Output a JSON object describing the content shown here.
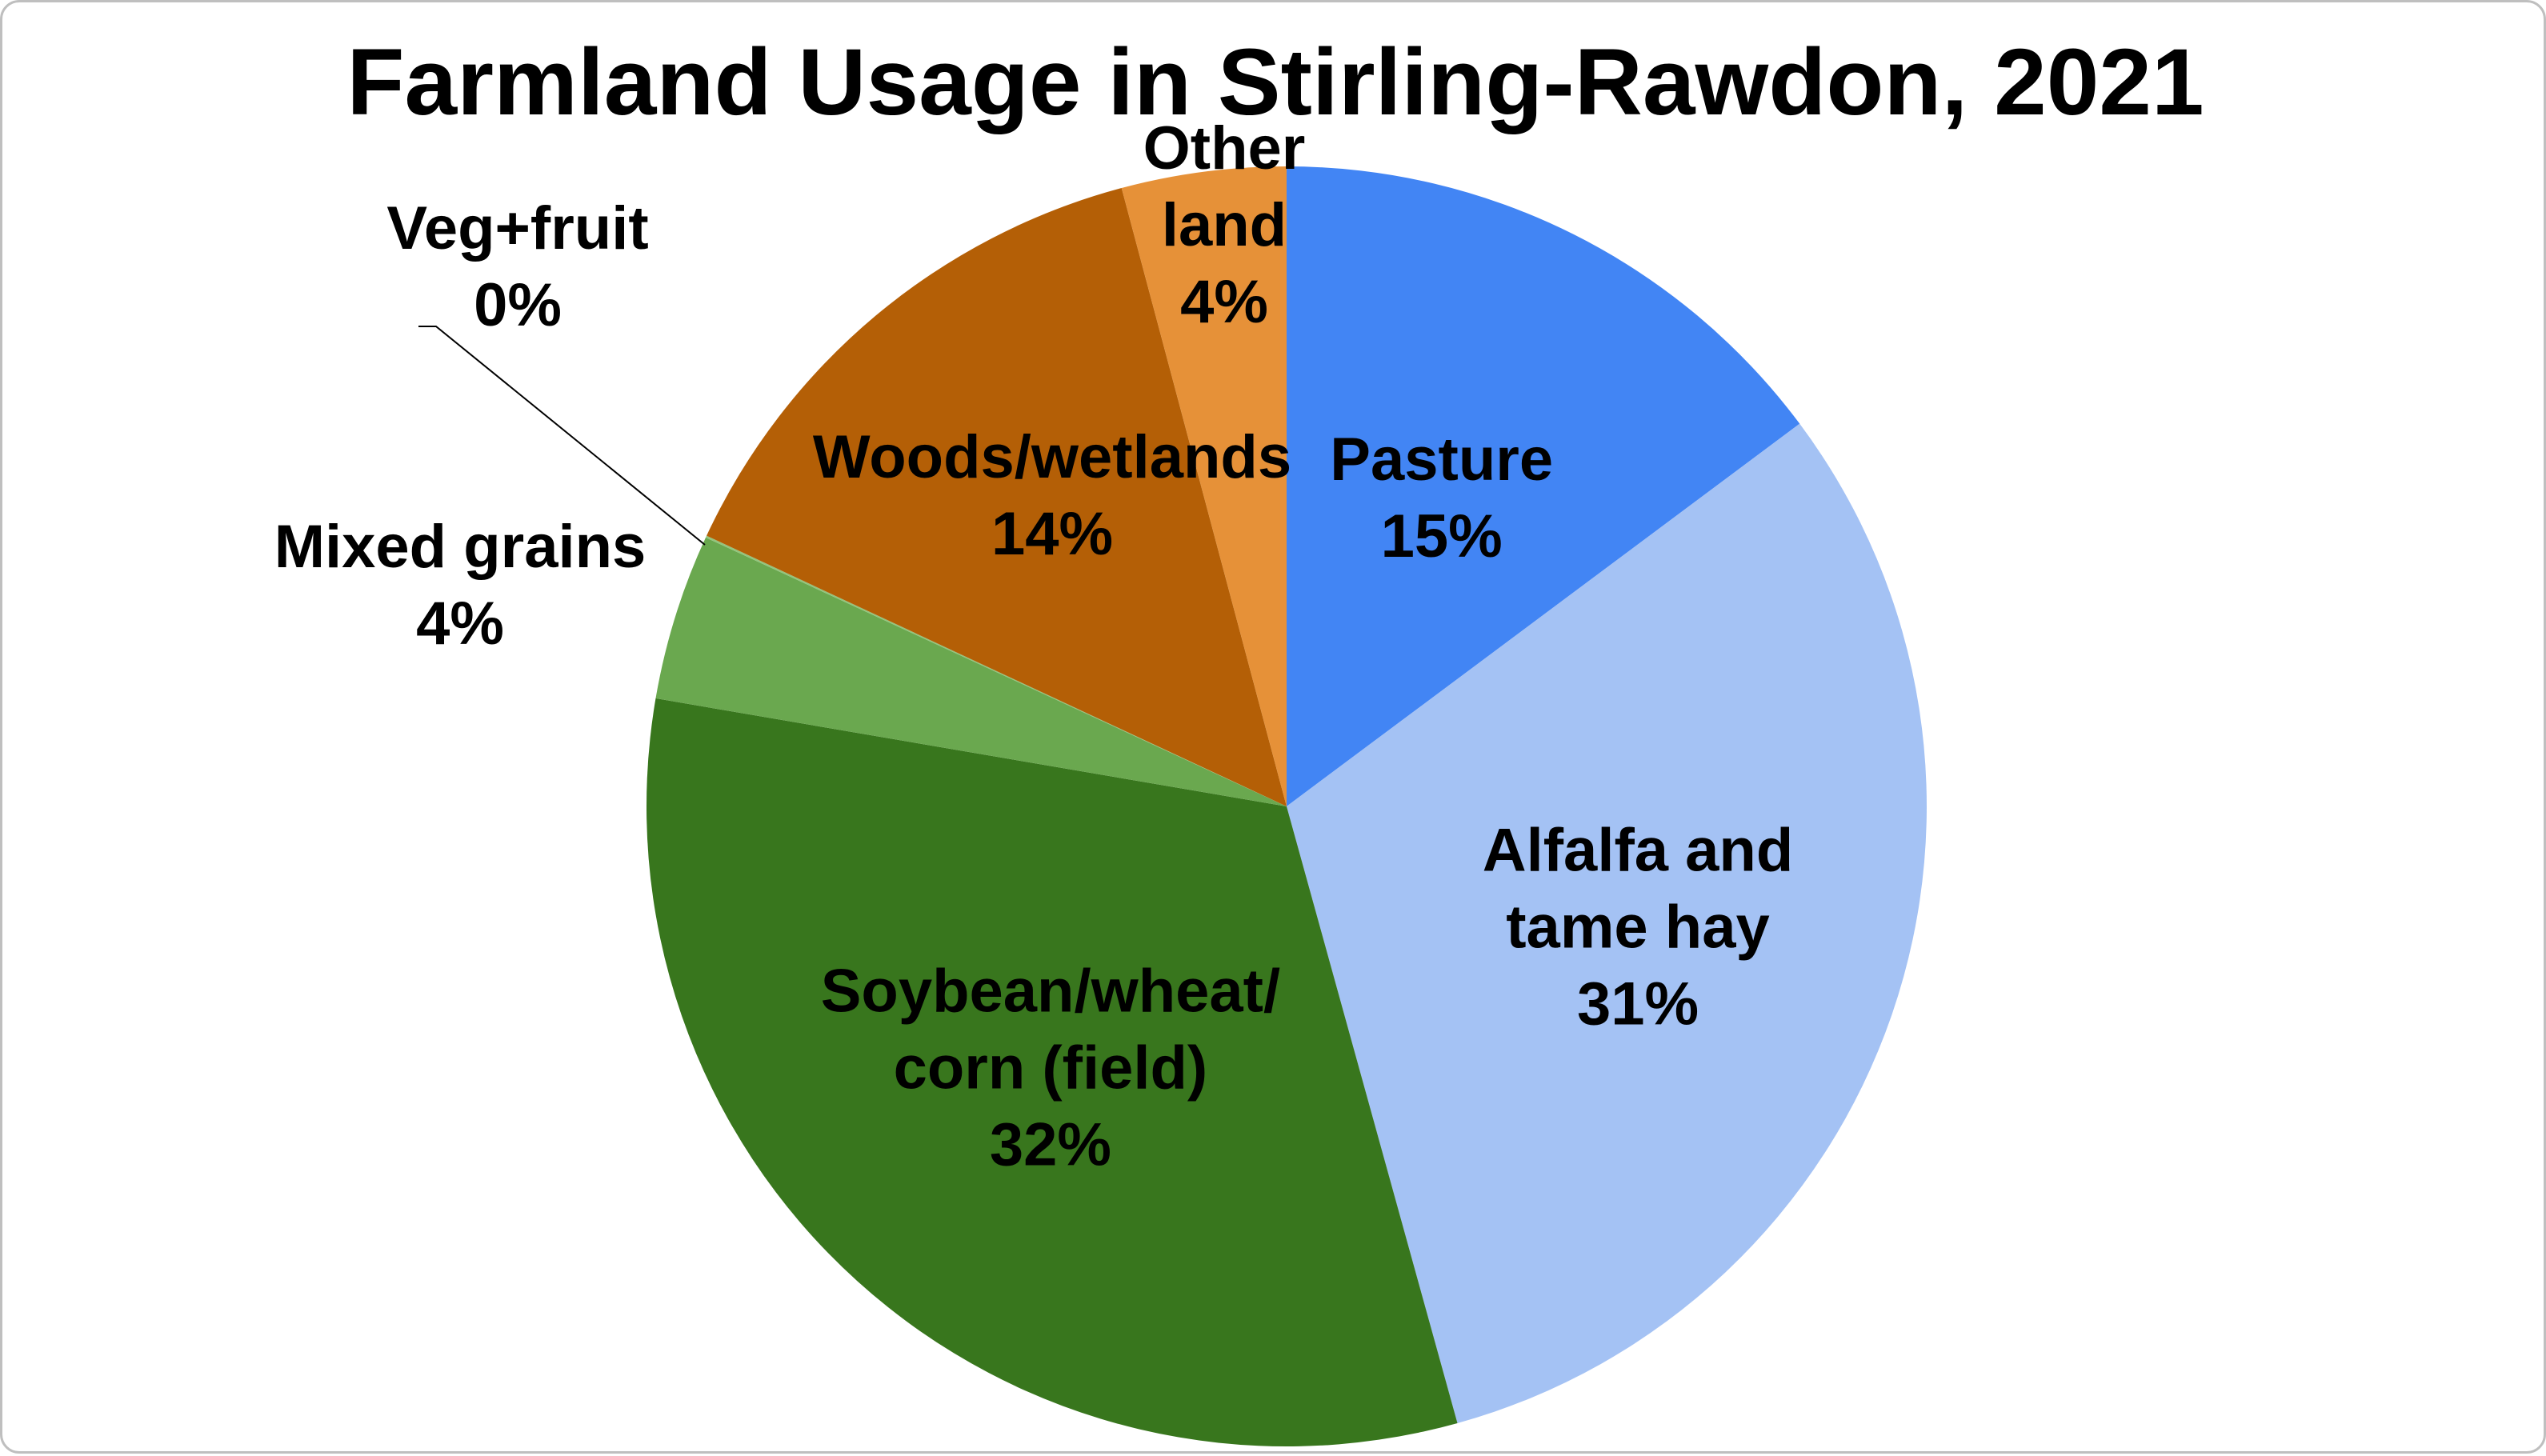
{
  "chart_data": {
    "type": "pie",
    "title": "Farmland Usage in Stirling-Rawdon, 2021",
    "slices": [
      {
        "name": "Pasture",
        "label_lines": [
          "Pasture"
        ],
        "percent_label": "15%",
        "value": 14.8,
        "color": "#4285F4"
      },
      {
        "name": "Alfalfa and tame hay",
        "label_lines": [
          "Alfalfa and",
          "tame hay"
        ],
        "percent_label": "31%",
        "value": 30.9,
        "color": "#A4C2F4"
      },
      {
        "name": "Soybean/wheat/corn (field)",
        "label_lines": [
          "Soybean/wheat/",
          "corn (field)"
        ],
        "percent_label": "32%",
        "value": 32.0,
        "color": "#38761D"
      },
      {
        "name": "Mixed grains",
        "label_lines": [
          "Mixed grains"
        ],
        "percent_label": "4%",
        "value": 4.2,
        "color": "#6AA84F"
      },
      {
        "name": "Veg+fruit",
        "label_lines": [
          "Veg+fruit"
        ],
        "percent_label": "0%",
        "value": 0.05,
        "color": "#93C47D"
      },
      {
        "name": "Woods/wetlands",
        "label_lines": [
          "Woods/wetlands"
        ],
        "percent_label": "14%",
        "value": 13.9,
        "color": "#B45F06"
      },
      {
        "name": "Other land",
        "label_lines": [
          "Other",
          "land"
        ],
        "percent_label": "4%",
        "value": 4.15,
        "color": "#E69138"
      }
    ]
  }
}
